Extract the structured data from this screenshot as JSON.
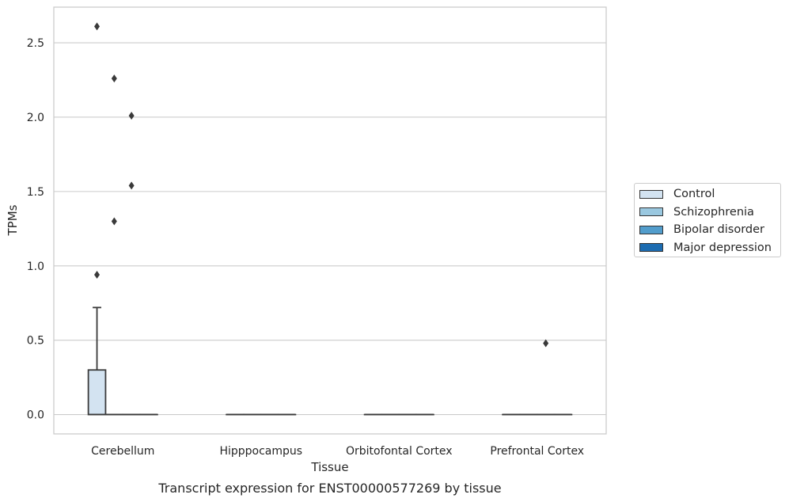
{
  "chart_data": {
    "type": "box",
    "title": "",
    "caption": "Transcript expression for ENST00000577269 by tissue",
    "xlabel": "Tissue",
    "ylabel": "TPMs",
    "categories": [
      "Cerebellum",
      "Hipppocampus",
      "Orbitofontal Cortex",
      "Prefrontal Cortex"
    ],
    "ylim": [
      -0.13,
      2.74
    ],
    "yticks": [
      0.0,
      0.5,
      1.0,
      1.5,
      2.0,
      2.5
    ],
    "ytick_labels": [
      "0.0",
      "0.5",
      "1.0",
      "1.5",
      "2.0",
      "2.5"
    ],
    "grid": "horizontal",
    "legend_position": "right",
    "series": [
      {
        "name": "Control",
        "color": "#d3e3f1",
        "boxes": [
          {
            "category": "Cerebellum",
            "q1": 0.0,
            "median": 0.0,
            "q3": 0.3,
            "whisker_low": 0.0,
            "whisker_high": 0.72,
            "outliers": [
              0.94,
              2.61
            ]
          },
          {
            "category": "Hipppocampus",
            "q1": 0.0,
            "median": 0.0,
            "q3": 0.0,
            "whisker_low": 0.0,
            "whisker_high": 0.0,
            "outliers": []
          },
          {
            "category": "Orbitofontal Cortex",
            "q1": 0.0,
            "median": 0.0,
            "q3": 0.0,
            "whisker_low": 0.0,
            "whisker_high": 0.0,
            "outliers": []
          },
          {
            "category": "Prefrontal Cortex",
            "q1": 0.0,
            "median": 0.0,
            "q3": 0.0,
            "whisker_low": 0.0,
            "whisker_high": 0.0,
            "outliers": []
          }
        ]
      },
      {
        "name": "Schizophrenia",
        "color": "#9ac8e0",
        "boxes": [
          {
            "category": "Cerebellum",
            "q1": 0.0,
            "median": 0.0,
            "q3": 0.0,
            "whisker_low": 0.0,
            "whisker_high": 0.0,
            "outliers": [
              1.3,
              2.26
            ]
          },
          {
            "category": "Hipppocampus",
            "q1": 0.0,
            "median": 0.0,
            "q3": 0.0,
            "whisker_low": 0.0,
            "whisker_high": 0.0,
            "outliers": []
          },
          {
            "category": "Orbitofontal Cortex",
            "q1": 0.0,
            "median": 0.0,
            "q3": 0.0,
            "whisker_low": 0.0,
            "whisker_high": 0.0,
            "outliers": []
          },
          {
            "category": "Prefrontal Cortex",
            "q1": 0.0,
            "median": 0.0,
            "q3": 0.0,
            "whisker_low": 0.0,
            "whisker_high": 0.0,
            "outliers": []
          }
        ]
      },
      {
        "name": "Bipolar disorder",
        "color": "#529dcc",
        "boxes": [
          {
            "category": "Cerebellum",
            "q1": 0.0,
            "median": 0.0,
            "q3": 0.0,
            "whisker_low": 0.0,
            "whisker_high": 0.0,
            "outliers": [
              1.54,
              2.01
            ]
          },
          {
            "category": "Hipppocampus",
            "q1": 0.0,
            "median": 0.0,
            "q3": 0.0,
            "whisker_low": 0.0,
            "whisker_high": 0.0,
            "outliers": []
          },
          {
            "category": "Orbitofontal Cortex",
            "q1": 0.0,
            "median": 0.0,
            "q3": 0.0,
            "whisker_low": 0.0,
            "whisker_high": 0.0,
            "outliers": []
          },
          {
            "category": "Prefrontal Cortex",
            "q1": 0.0,
            "median": 0.0,
            "q3": 0.0,
            "whisker_low": 0.0,
            "whisker_high": 0.0,
            "outliers": [
              0.48
            ]
          }
        ]
      },
      {
        "name": "Major depression",
        "color": "#1c6cb1",
        "boxes": [
          {
            "category": "Cerebellum",
            "q1": 0.0,
            "median": 0.0,
            "q3": 0.0,
            "whisker_low": 0.0,
            "whisker_high": 0.0,
            "outliers": []
          },
          {
            "category": "Hipppocampus",
            "q1": 0.0,
            "median": 0.0,
            "q3": 0.0,
            "whisker_low": 0.0,
            "whisker_high": 0.0,
            "outliers": []
          },
          {
            "category": "Orbitofontal Cortex",
            "q1": 0.0,
            "median": 0.0,
            "q3": 0.0,
            "whisker_low": 0.0,
            "whisker_high": 0.0,
            "outliers": []
          },
          {
            "category": "Prefrontal Cortex",
            "q1": 0.0,
            "median": 0.0,
            "q3": 0.0,
            "whisker_low": 0.0,
            "whisker_high": 0.0,
            "outliers": []
          }
        ]
      }
    ]
  },
  "colors": {
    "grid": "#cccccc",
    "frame": "#cccccc",
    "box_edge": "#3a3a3a",
    "outlier": "#3a3a3a"
  }
}
